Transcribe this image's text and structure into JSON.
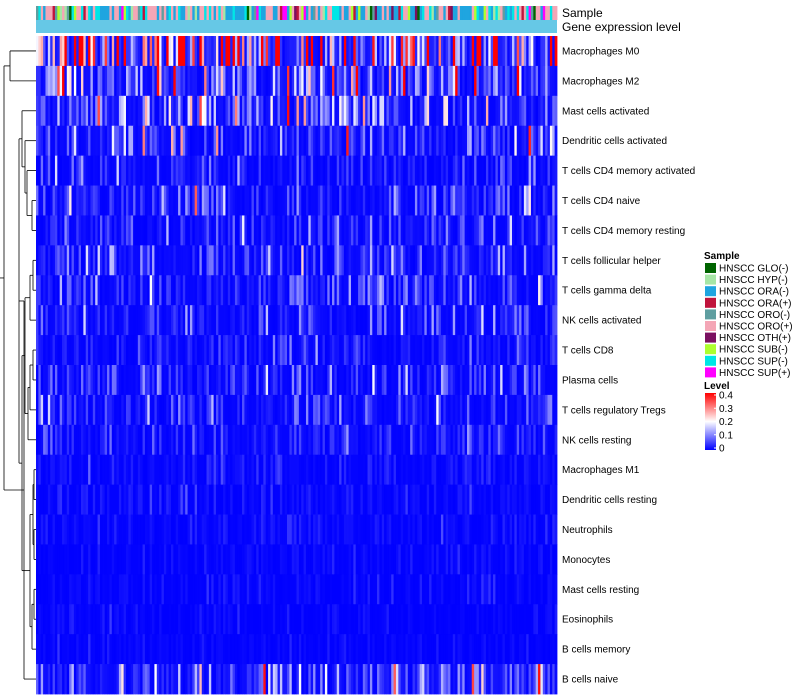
{
  "chart_data": {
    "type": "heatmap",
    "title": "",
    "annotations": [
      "Sample",
      "Gene expression level"
    ],
    "rows": [
      {
        "name": "Macrophages M0",
        "mean": 0.28
      },
      {
        "name": "Macrophages M2",
        "mean": 0.14
      },
      {
        "name": "Mast cells activated",
        "mean": 0.11
      },
      {
        "name": "Dendritic cells activated",
        "mean": 0.07
      },
      {
        "name": "T cells CD4 memory activated",
        "mean": 0.04
      },
      {
        "name": "T cells CD4 naive",
        "mean": 0.06
      },
      {
        "name": "T cells CD4 memory resting",
        "mean": 0.04
      },
      {
        "name": "T cells follicular helper",
        "mean": 0.06
      },
      {
        "name": "T cells gamma delta",
        "mean": 0.05
      },
      {
        "name": "NK cells activated",
        "mean": 0.04
      },
      {
        "name": "T cells CD8",
        "mean": 0.03
      },
      {
        "name": "Plasma cells",
        "mean": 0.04
      },
      {
        "name": "T cells regulatory  Tregs",
        "mean": 0.04
      },
      {
        "name": "NK cells resting",
        "mean": 0.03
      },
      {
        "name": "Macrophages M1",
        "mean": 0.02
      },
      {
        "name": "Dendritic cells resting",
        "mean": 0.015
      },
      {
        "name": "Neutrophils",
        "mean": 0.015
      },
      {
        "name": "Monocytes",
        "mean": 0.01
      },
      {
        "name": "Mast cells resting",
        "mean": 0.01
      },
      {
        "name": "Eosinophils",
        "mean": 0.008
      },
      {
        "name": "B cells memory",
        "mean": 0.008
      },
      {
        "name": "B cells naive",
        "mean": 0.09
      }
    ],
    "n_samples": 220,
    "color_scale": {
      "title": "Level",
      "min": 0,
      "max": 0.4,
      "ticks": [
        "0.4",
        "0.3",
        "0.2",
        "0.1",
        "0"
      ],
      "colors": [
        "#0000ff",
        "#ffffff",
        "#ff0000"
      ]
    },
    "sample_legend": {
      "title": "Sample",
      "items": [
        {
          "label": "HNSCC GLO(-)",
          "color": "#006400"
        },
        {
          "label": "HNSCC HYP(-)",
          "color": "#a6e6a6"
        },
        {
          "label": "HNSCC ORA(-)",
          "color": "#1fa5e0"
        },
        {
          "label": "HNSCC ORA(+)",
          "color": "#c0143c"
        },
        {
          "label": "HNSCC ORO(-)",
          "color": "#5f9ea0"
        },
        {
          "label": "HNSCC ORO(+)",
          "color": "#f4a6b6"
        },
        {
          "label": "HNSCC OTH(+)",
          "color": "#7a1060"
        },
        {
          "label": "HNSCC SUB(-)",
          "color": "#adff2f"
        },
        {
          "label": "HNSCC SUP(-)",
          "color": "#00e6e6"
        },
        {
          "label": "HNSCC SUP(+)",
          "color": "#ff00ff"
        }
      ]
    },
    "expression_level_color": "#66c8e6"
  }
}
